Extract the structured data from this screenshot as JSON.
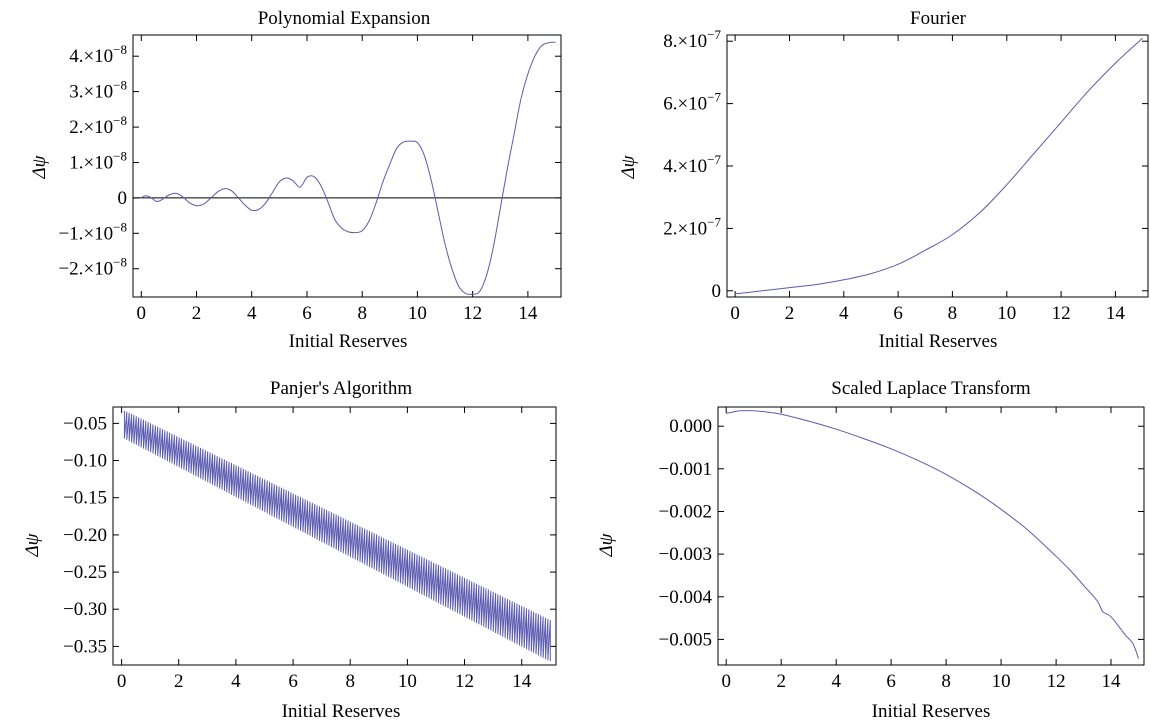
{
  "chart_data": [
    {
      "type": "line",
      "title": "Polynomial Expansion",
      "xlabel": "Initial Reserves",
      "ylabel": "Δψ",
      "xlim": [
        -0.3,
        15.2
      ],
      "ylim": [
        -2.8e-08,
        4.6e-08
      ],
      "x_ticks": [
        0,
        2,
        4,
        6,
        8,
        10,
        12,
        14
      ],
      "x_tick_labels": [
        "0",
        "2",
        "4",
        "6",
        "8",
        "10",
        "12",
        "14"
      ],
      "y_ticks": [
        -2e-08,
        -1e-08,
        0,
        1e-08,
        2e-08,
        3e-08,
        4e-08
      ],
      "y_tick_labels": [
        {
          "mant": "−2.",
          "sep": "×10",
          "exp": "−8"
        },
        {
          "mant": "−1.",
          "sep": "×10",
          "exp": "−8"
        },
        {
          "mant": "0",
          "sep": "",
          "exp": ""
        },
        {
          "mant": "1.",
          "sep": "×10",
          "exp": "−8"
        },
        {
          "mant": "2.",
          "sep": "×10",
          "exp": "−8"
        },
        {
          "mant": "3.",
          "sep": "×10",
          "exp": "−8"
        },
        {
          "mant": "4.",
          "sep": "×10",
          "exp": "−8"
        }
      ],
      "zero_line": true,
      "grid": false,
      "color": "#5b5bb0",
      "series": [
        {
          "x": [
            0,
            0.15,
            0.35,
            0.55,
            0.75,
            1.0,
            1.25,
            1.5,
            1.75,
            2.0,
            2.25,
            2.5,
            2.75,
            3.0,
            3.25,
            3.5,
            3.75,
            4.0,
            4.25,
            4.5,
            4.75,
            5.0,
            5.25,
            5.5,
            5.75,
            6.0,
            6.25,
            6.5,
            6.75,
            7.0,
            7.25,
            7.5,
            7.75,
            8.0,
            8.25,
            8.5,
            8.75,
            9.0,
            9.25,
            9.5,
            9.75,
            10.0,
            10.25,
            10.5,
            10.75,
            11.0,
            11.25,
            11.5,
            11.75,
            12.0,
            12.25,
            12.5,
            12.75,
            13.0,
            13.25,
            13.5,
            13.75,
            14.0,
            14.25,
            14.5,
            14.75,
            15.0
          ],
          "y": [
            0,
            6e-10,
            1e-10,
            -1e-09,
            -5e-10,
            8e-10,
            1.3e-09,
            3e-10,
            -1.4e-09,
            -2.2e-09,
            -1.8e-09,
            -2e-10,
            1.6e-09,
            2.6e-09,
            2.1e-09,
            2e-10,
            -2e-09,
            -3.5e-09,
            -3.3e-09,
            -1.5e-09,
            1.5e-09,
            4.5e-09,
            5.6e-09,
            4.8e-09,
            3e-09,
            5.8e-09,
            6e-09,
            3.5e-09,
            -1e-09,
            -6e-09,
            -8.5e-09,
            -9.6e-09,
            -9.8e-09,
            -9.3e-09,
            -6.5e-09,
            -1.5e-09,
            4.5e-09,
            9.5e-09,
            1.4e-08,
            1.58e-08,
            1.6e-08,
            1.56e-08,
            1.2e-08,
            5e-09,
            -4e-09,
            -1.3e-08,
            -2e-08,
            -2.5e-08,
            -2.7e-08,
            -2.72e-08,
            -2.65e-08,
            -2.2e-08,
            -1.4e-08,
            -3e-09,
            8e-09,
            1.8e-08,
            2.8e-08,
            3.5e-08,
            4e-08,
            4.3e-08,
            4.38e-08,
            4.4e-08
          ]
        }
      ]
    },
    {
      "type": "line",
      "title": "Fourier",
      "xlabel": "Initial Reserves",
      "ylabel": "Δψ",
      "xlim": [
        -0.3,
        15.2
      ],
      "ylim": [
        -2e-08,
        8.2e-07
      ],
      "x_ticks": [
        0,
        2,
        4,
        6,
        8,
        10,
        12,
        14
      ],
      "x_tick_labels": [
        "0",
        "2",
        "4",
        "6",
        "8",
        "10",
        "12",
        "14"
      ],
      "y_ticks": [
        0,
        2e-07,
        4e-07,
        6e-07,
        8e-07
      ],
      "y_tick_labels": [
        {
          "mant": "0",
          "sep": "",
          "exp": ""
        },
        {
          "mant": "2.",
          "sep": "×10",
          "exp": "−7"
        },
        {
          "mant": "4.",
          "sep": "×10",
          "exp": "−7"
        },
        {
          "mant": "6.",
          "sep": "×10",
          "exp": "−7"
        },
        {
          "mant": "8.",
          "sep": "×10",
          "exp": "−7"
        }
      ],
      "zero_line": false,
      "grid": false,
      "color": "#5b5bb0",
      "series": [
        {
          "x": [
            0,
            1,
            2,
            3,
            4,
            5,
            6,
            7,
            8,
            9,
            10,
            11,
            12,
            13,
            14,
            15
          ],
          "y": [
            -1e-08,
            0.0,
            1e-08,
            2e-08,
            3.5e-08,
            5.5e-08,
            8.5e-08,
            1.3e-07,
            1.8e-07,
            2.5e-07,
            3.4e-07,
            4.4e-07,
            5.4e-07,
            6.4e-07,
            7.3e-07,
            8.1e-07
          ]
        }
      ]
    },
    {
      "type": "line",
      "title": "Panjer's Algorithm",
      "xlabel": "Initial Reserves",
      "ylabel": "Δψ",
      "xlim": [
        -0.3,
        15.2
      ],
      "ylim": [
        -0.375,
        -0.028
      ],
      "x_ticks": [
        0,
        2,
        4,
        6,
        8,
        10,
        12,
        14
      ],
      "x_tick_labels": [
        "0",
        "2",
        "4",
        "6",
        "8",
        "10",
        "12",
        "14"
      ],
      "y_ticks": [
        -0.35,
        -0.3,
        -0.25,
        -0.2,
        -0.15,
        -0.1,
        -0.05
      ],
      "y_tick_labels": [
        {
          "mant": "−0.35",
          "sep": "",
          "exp": ""
        },
        {
          "mant": "−0.30",
          "sep": "",
          "exp": ""
        },
        {
          "mant": "−0.25",
          "sep": "",
          "exp": ""
        },
        {
          "mant": "−0.20",
          "sep": "",
          "exp": ""
        },
        {
          "mant": "−0.15",
          "sep": "",
          "exp": ""
        },
        {
          "mant": "−0.10",
          "sep": "",
          "exp": ""
        },
        {
          "mant": "−0.05",
          "sep": "",
          "exp": ""
        }
      ],
      "zero_line": false,
      "grid": false,
      "color": "#5b5bb0",
      "oscillation": {
        "x_start": 0.1,
        "x_end": 15.0,
        "upper_start": -0.033,
        "upper_end": -0.315,
        "lower_start": -0.07,
        "lower_end": -0.37,
        "cycles_per_unit": 12
      }
    },
    {
      "type": "line",
      "title": "Scaled Laplace Transform",
      "xlabel": "Initial Reserves",
      "ylabel": "Δψ",
      "xlim": [
        -0.3,
        15.2
      ],
      "ylim": [
        -0.0056,
        0.00045
      ],
      "x_ticks": [
        0,
        2,
        4,
        6,
        8,
        10,
        12,
        14
      ],
      "x_tick_labels": [
        "0",
        "2",
        "4",
        "6",
        "8",
        "10",
        "12",
        "14"
      ],
      "y_ticks": [
        -0.005,
        -0.004,
        -0.003,
        -0.002,
        -0.001,
        0.0
      ],
      "y_tick_labels": [
        {
          "mant": "−0.005",
          "sep": "",
          "exp": ""
        },
        {
          "mant": "−0.004",
          "sep": "",
          "exp": ""
        },
        {
          "mant": "−0.003",
          "sep": "",
          "exp": ""
        },
        {
          "mant": "−0.002",
          "sep": "",
          "exp": ""
        },
        {
          "mant": "−0.001",
          "sep": "",
          "exp": ""
        },
        {
          "mant": "0.000",
          "sep": "",
          "exp": ""
        }
      ],
      "zero_line": false,
      "grid": false,
      "color": "#5b5bb0",
      "series": [
        {
          "x": [
            0,
            0.5,
            1,
            1.5,
            2,
            3,
            4,
            5,
            6,
            7,
            8,
            9,
            10,
            11,
            12,
            12.5,
            13,
            13.5,
            13.7,
            14,
            14.5,
            14.8,
            15
          ],
          "y": [
            0.0003,
            0.00036,
            0.00036,
            0.00033,
            0.00028,
            0.00012,
            -7e-05,
            -0.00029,
            -0.00053,
            -0.00081,
            -0.00113,
            -0.00151,
            -0.00195,
            -0.00245,
            -0.00305,
            -0.00337,
            -0.00373,
            -0.0041,
            -0.00435,
            -0.00447,
            -0.00488,
            -0.0051,
            -0.00545
          ]
        }
      ]
    }
  ]
}
